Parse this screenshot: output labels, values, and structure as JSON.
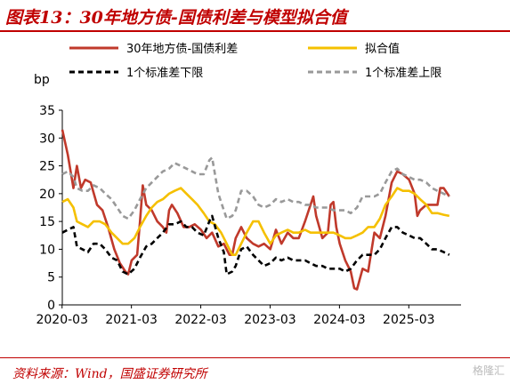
{
  "figure": {
    "title": "图表13：30年地方债-国债利差与模型拟合值",
    "source": "资料来源：Wind，国盛证券研究所",
    "watermark": "格隆汇"
  },
  "chart_data": {
    "type": "line",
    "title": "",
    "ylabel": "bp",
    "xlabel": "",
    "ylim": [
      0,
      35
    ],
    "yticks": [
      0,
      5,
      10,
      15,
      20,
      25,
      30,
      35
    ],
    "x_tick_labels": [
      "2020-03",
      "2021-03",
      "2022-03",
      "2023-03",
      "2024-03",
      "2025-03"
    ],
    "x_range": [
      2020.17,
      2025.92
    ],
    "grid": false,
    "legend": "top, two rows",
    "series": [
      {
        "name": "30年地方债-国债利差",
        "color": "#c0392b",
        "dash": "solid",
        "points": [
          [
            2020.17,
            31.5
          ],
          [
            2020.25,
            27
          ],
          [
            2020.33,
            21
          ],
          [
            2020.38,
            25
          ],
          [
            2020.44,
            21
          ],
          [
            2020.5,
            22.5
          ],
          [
            2020.58,
            22
          ],
          [
            2020.67,
            18
          ],
          [
            2020.75,
            17
          ],
          [
            2020.83,
            14
          ],
          [
            2020.92,
            10
          ],
          [
            2021.0,
            7.5
          ],
          [
            2021.08,
            6
          ],
          [
            2021.12,
            5.5
          ],
          [
            2021.17,
            8
          ],
          [
            2021.25,
            9
          ],
          [
            2021.29,
            15
          ],
          [
            2021.33,
            21.5
          ],
          [
            2021.38,
            18
          ],
          [
            2021.46,
            17
          ],
          [
            2021.54,
            15
          ],
          [
            2021.62,
            14
          ],
          [
            2021.67,
            13
          ],
          [
            2021.71,
            17
          ],
          [
            2021.75,
            18
          ],
          [
            2021.83,
            16.5
          ],
          [
            2021.92,
            14
          ],
          [
            2022.0,
            14
          ],
          [
            2022.08,
            14.5
          ],
          [
            2022.17,
            13.5
          ],
          [
            2022.25,
            12
          ],
          [
            2022.33,
            13
          ],
          [
            2022.42,
            10.5
          ],
          [
            2022.5,
            11
          ],
          [
            2022.58,
            9
          ],
          [
            2022.62,
            9
          ],
          [
            2022.67,
            12
          ],
          [
            2022.75,
            14
          ],
          [
            2022.83,
            12
          ],
          [
            2022.92,
            11
          ],
          [
            2023.0,
            10.5
          ],
          [
            2023.08,
            11
          ],
          [
            2023.17,
            10
          ],
          [
            2023.25,
            13.5
          ],
          [
            2023.33,
            11
          ],
          [
            2023.42,
            13
          ],
          [
            2023.5,
            12
          ],
          [
            2023.58,
            12
          ],
          [
            2023.67,
            15
          ],
          [
            2023.75,
            18
          ],
          [
            2023.79,
            19.5
          ],
          [
            2023.83,
            16
          ],
          [
            2023.92,
            12
          ],
          [
            2024.0,
            13
          ],
          [
            2024.04,
            18
          ],
          [
            2024.08,
            18.5
          ],
          [
            2024.12,
            14
          ],
          [
            2024.17,
            11
          ],
          [
            2024.25,
            8
          ],
          [
            2024.33,
            6
          ],
          [
            2024.38,
            3
          ],
          [
            2024.42,
            2.8
          ],
          [
            2024.5,
            6.5
          ],
          [
            2024.58,
            6
          ],
          [
            2024.67,
            13
          ],
          [
            2024.75,
            12
          ],
          [
            2024.83,
            16
          ],
          [
            2024.92,
            22
          ],
          [
            2025.0,
            24
          ],
          [
            2025.08,
            23.5
          ],
          [
            2025.17,
            22.5
          ],
          [
            2025.25,
            20
          ],
          [
            2025.29,
            16
          ],
          [
            2025.33,
            17
          ],
          [
            2025.42,
            18
          ],
          [
            2025.5,
            18
          ],
          [
            2025.58,
            18
          ],
          [
            2025.62,
            21
          ],
          [
            2025.67,
            21
          ],
          [
            2025.75,
            19.5
          ]
        ]
      },
      {
        "name": "拟合值",
        "color": "#f5c000",
        "dash": "solid",
        "points": [
          [
            2020.17,
            18.5
          ],
          [
            2020.25,
            19
          ],
          [
            2020.33,
            17.5
          ],
          [
            2020.38,
            15
          ],
          [
            2020.46,
            14.5
          ],
          [
            2020.54,
            14
          ],
          [
            2020.62,
            15
          ],
          [
            2020.71,
            15
          ],
          [
            2020.79,
            14.5
          ],
          [
            2020.88,
            13
          ],
          [
            2020.96,
            12
          ],
          [
            2021.04,
            11
          ],
          [
            2021.12,
            11
          ],
          [
            2021.21,
            12
          ],
          [
            2021.29,
            14
          ],
          [
            2021.38,
            16
          ],
          [
            2021.46,
            17.5
          ],
          [
            2021.54,
            18.5
          ],
          [
            2021.62,
            19
          ],
          [
            2021.71,
            20
          ],
          [
            2021.79,
            20.5
          ],
          [
            2021.88,
            21
          ],
          [
            2021.96,
            20
          ],
          [
            2022.04,
            19
          ],
          [
            2022.12,
            18
          ],
          [
            2022.21,
            16.5
          ],
          [
            2022.29,
            15
          ],
          [
            2022.37,
            14.5
          ],
          [
            2022.46,
            13
          ],
          [
            2022.54,
            11
          ],
          [
            2022.62,
            9
          ],
          [
            2022.67,
            9
          ],
          [
            2022.75,
            11
          ],
          [
            2022.83,
            13
          ],
          [
            2022.92,
            15
          ],
          [
            2023.0,
            15
          ],
          [
            2023.08,
            13
          ],
          [
            2023.17,
            11
          ],
          [
            2023.25,
            12.5
          ],
          [
            2023.33,
            13
          ],
          [
            2023.42,
            13.5
          ],
          [
            2023.5,
            13
          ],
          [
            2023.58,
            13
          ],
          [
            2023.67,
            13.5
          ],
          [
            2023.75,
            13
          ],
          [
            2023.83,
            13
          ],
          [
            2023.92,
            13
          ],
          [
            2024.0,
            13
          ],
          [
            2024.08,
            13
          ],
          [
            2024.17,
            12.5
          ],
          [
            2024.25,
            12
          ],
          [
            2024.33,
            12
          ],
          [
            2024.42,
            12.5
          ],
          [
            2024.5,
            13
          ],
          [
            2024.58,
            14
          ],
          [
            2024.67,
            14
          ],
          [
            2024.75,
            15.5
          ],
          [
            2024.83,
            18
          ],
          [
            2024.92,
            19.5
          ],
          [
            2025.0,
            21
          ],
          [
            2025.08,
            20.5
          ],
          [
            2025.17,
            20.5
          ],
          [
            2025.25,
            20
          ],
          [
            2025.33,
            19
          ],
          [
            2025.42,
            18
          ],
          [
            2025.5,
            16.5
          ],
          [
            2025.58,
            16.5
          ],
          [
            2025.67,
            16.2
          ],
          [
            2025.75,
            16
          ]
        ]
      },
      {
        "name": "1个标准差下限",
        "color": "#000000",
        "dash": "dashed",
        "points": [
          [
            2020.17,
            13
          ],
          [
            2020.25,
            13.5
          ],
          [
            2020.33,
            14
          ],
          [
            2020.38,
            10.5
          ],
          [
            2020.46,
            10
          ],
          [
            2020.54,
            9.5
          ],
          [
            2020.62,
            11
          ],
          [
            2020.71,
            11
          ],
          [
            2020.79,
            10
          ],
          [
            2020.88,
            8.5
          ],
          [
            2020.96,
            8
          ],
          [
            2021.04,
            6
          ],
          [
            2021.12,
            5.5
          ],
          [
            2021.21,
            6.5
          ],
          [
            2021.29,
            8.5
          ],
          [
            2021.38,
            10.5
          ],
          [
            2021.46,
            11
          ],
          [
            2021.54,
            12
          ],
          [
            2021.62,
            13
          ],
          [
            2021.71,
            14.5
          ],
          [
            2021.79,
            14.5
          ],
          [
            2021.88,
            15
          ],
          [
            2021.96,
            14
          ],
          [
            2022.04,
            14
          ],
          [
            2022.12,
            13
          ],
          [
            2022.21,
            12.5
          ],
          [
            2022.29,
            15
          ],
          [
            2022.33,
            16
          ],
          [
            2022.42,
            12
          ],
          [
            2022.5,
            9.5
          ],
          [
            2022.54,
            5.5
          ],
          [
            2022.62,
            6
          ],
          [
            2022.67,
            7
          ],
          [
            2022.75,
            10
          ],
          [
            2022.83,
            10.5
          ],
          [
            2022.92,
            9
          ],
          [
            2023.0,
            8
          ],
          [
            2023.08,
            7
          ],
          [
            2023.17,
            7.5
          ],
          [
            2023.25,
            8.5
          ],
          [
            2023.33,
            8
          ],
          [
            2023.42,
            8.5
          ],
          [
            2023.5,
            8
          ],
          [
            2023.58,
            8
          ],
          [
            2023.67,
            8
          ],
          [
            2023.75,
            7.5
          ],
          [
            2023.83,
            7
          ],
          [
            2023.92,
            7
          ],
          [
            2024.0,
            6.5
          ],
          [
            2024.08,
            6.5
          ],
          [
            2024.17,
            6.5
          ],
          [
            2024.25,
            6
          ],
          [
            2024.33,
            6.5
          ],
          [
            2024.42,
            8
          ],
          [
            2024.5,
            9
          ],
          [
            2024.58,
            9
          ],
          [
            2024.67,
            9
          ],
          [
            2024.75,
            10
          ],
          [
            2024.83,
            12
          ],
          [
            2024.92,
            14
          ],
          [
            2025.0,
            14
          ],
          [
            2025.08,
            13
          ],
          [
            2025.17,
            12.5
          ],
          [
            2025.25,
            12
          ],
          [
            2025.33,
            12
          ],
          [
            2025.42,
            11
          ],
          [
            2025.5,
            10
          ],
          [
            2025.58,
            10
          ],
          [
            2025.67,
            9.5
          ],
          [
            2025.75,
            9
          ]
        ]
      },
      {
        "name": "1个标准差上限",
        "color": "#999999",
        "dash": "dashed",
        "points": [
          [
            2020.17,
            23.5
          ],
          [
            2020.25,
            24
          ],
          [
            2020.33,
            23
          ],
          [
            2020.38,
            21
          ],
          [
            2020.46,
            20.5
          ],
          [
            2020.54,
            20.5
          ],
          [
            2020.62,
            21.5
          ],
          [
            2020.71,
            21
          ],
          [
            2020.79,
            20
          ],
          [
            2020.88,
            19
          ],
          [
            2020.96,
            17.5
          ],
          [
            2021.04,
            16
          ],
          [
            2021.12,
            15.5
          ],
          [
            2021.21,
            17
          ],
          [
            2021.29,
            19
          ],
          [
            2021.38,
            21
          ],
          [
            2021.46,
            22
          ],
          [
            2021.54,
            23
          ],
          [
            2021.62,
            24
          ],
          [
            2021.71,
            24.5
          ],
          [
            2021.79,
            25.5
          ],
          [
            2021.88,
            25
          ],
          [
            2021.96,
            24.5
          ],
          [
            2022.04,
            24
          ],
          [
            2022.12,
            23.5
          ],
          [
            2022.21,
            23.5
          ],
          [
            2022.29,
            26
          ],
          [
            2022.33,
            26.5
          ],
          [
            2022.42,
            20
          ],
          [
            2022.5,
            17
          ],
          [
            2022.54,
            15.5
          ],
          [
            2022.62,
            16
          ],
          [
            2022.67,
            17
          ],
          [
            2022.75,
            20.5
          ],
          [
            2022.83,
            20.5
          ],
          [
            2022.92,
            19.5
          ],
          [
            2023.0,
            18
          ],
          [
            2023.08,
            17.5
          ],
          [
            2023.17,
            18
          ],
          [
            2023.25,
            19
          ],
          [
            2023.33,
            18.5
          ],
          [
            2023.42,
            19
          ],
          [
            2023.5,
            18.5
          ],
          [
            2023.58,
            18.5
          ],
          [
            2023.67,
            18
          ],
          [
            2023.75,
            18
          ],
          [
            2023.83,
            17.5
          ],
          [
            2023.92,
            17.5
          ],
          [
            2024.0,
            17.5
          ],
          [
            2024.08,
            17
          ],
          [
            2024.17,
            17
          ],
          [
            2024.25,
            17
          ],
          [
            2024.33,
            16.5
          ],
          [
            2024.42,
            17.5
          ],
          [
            2024.5,
            19.5
          ],
          [
            2024.58,
            19.5
          ],
          [
            2024.67,
            19.5
          ],
          [
            2024.75,
            20
          ],
          [
            2024.83,
            22
          ],
          [
            2024.92,
            24
          ],
          [
            2025.0,
            24.5
          ],
          [
            2025.08,
            23.5
          ],
          [
            2025.17,
            23
          ],
          [
            2025.25,
            22.5
          ],
          [
            2025.33,
            22.5
          ],
          [
            2025.42,
            22
          ],
          [
            2025.5,
            21
          ],
          [
            2025.58,
            20.5
          ],
          [
            2025.67,
            20
          ],
          [
            2025.75,
            19.5
          ]
        ]
      }
    ]
  }
}
